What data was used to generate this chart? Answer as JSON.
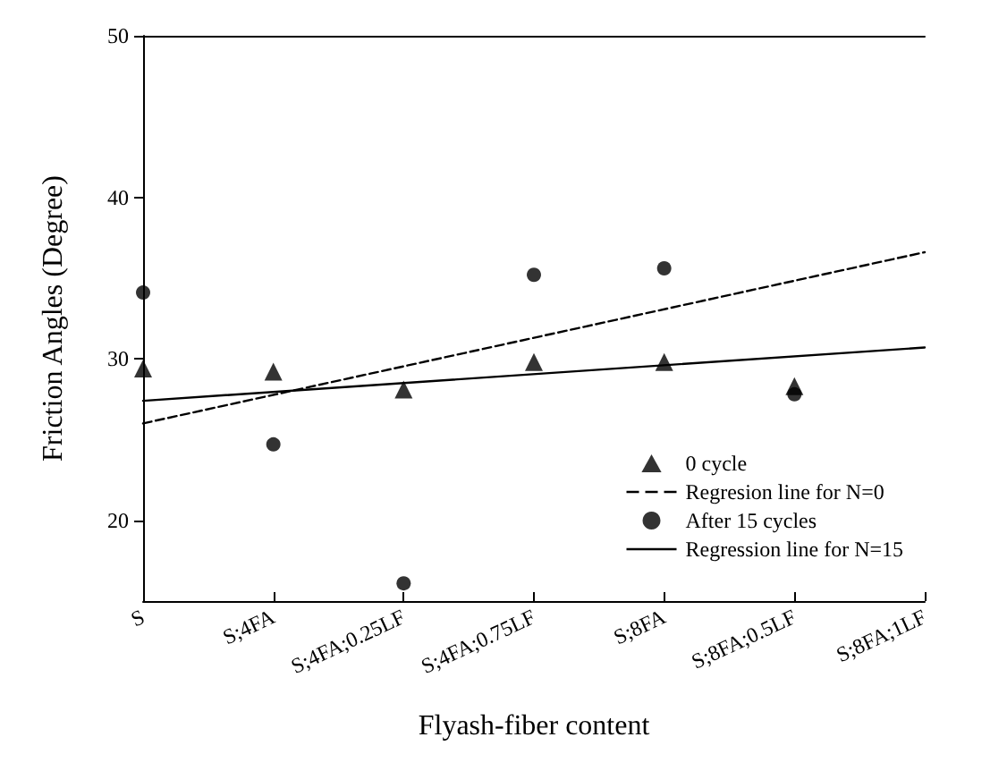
{
  "chart_data": {
    "type": "scatter",
    "xlabel": "Flyash-fiber content",
    "ylabel": "Friction Angles (Degree)",
    "categories": [
      "S",
      "S;4FA",
      "S;4FA;0.25LF",
      "S;4FA;0.75LF",
      "S;8FA",
      "S;8FA;0.5LF",
      "S;8FA;1LF"
    ],
    "series": [
      {
        "name": "0 cycle",
        "color": "#000000",
        "marker": "triangle",
        "values": [
          29.4,
          29.2,
          28.1,
          29.8,
          29.8,
          28.3,
          null
        ]
      },
      {
        "name": "Regresion line for N=0",
        "type": "line",
        "color": "#000000",
        "marker": "none",
        "line_style": "dashed",
        "x": [
          "S",
          "S;8FA;1LF"
        ],
        "values": [
          26.0,
          36.6
        ]
      },
      {
        "name": "After 15 cycles",
        "color": "#000000",
        "marker": "circle",
        "values": [
          34.1,
          24.7,
          16.1,
          35.2,
          35.6,
          27.8,
          null
        ]
      },
      {
        "name": "Regression line for N=15",
        "type": "line",
        "color": "#000000",
        "marker": "none",
        "line_style": "solid",
        "x": [
          "S",
          "S;8FA;1LF"
        ],
        "values": [
          27.4,
          30.7
        ]
      }
    ],
    "ylim": [
      15,
      50
    ],
    "yticks": [
      20,
      30,
      40,
      50
    ],
    "grid": false,
    "legend": "bottom right"
  }
}
